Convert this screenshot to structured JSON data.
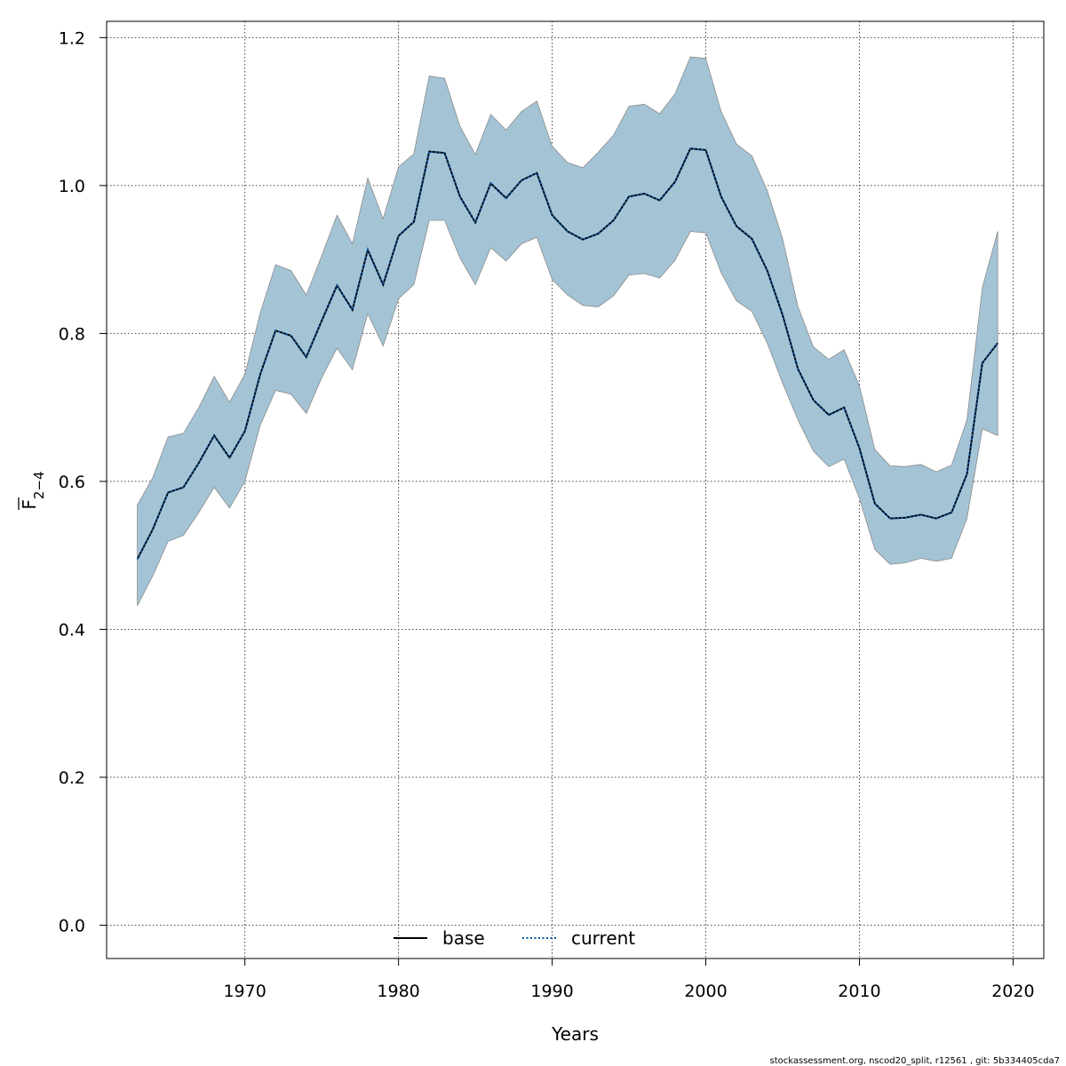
{
  "chart_data": {
    "type": "area",
    "xlabel": "Years",
    "ylabel_main": "F",
    "ylabel_sub": "2−4",
    "xlim": [
      1961,
      2022
    ],
    "ylim": [
      -0.045,
      1.222
    ],
    "x_ticks": [
      1970,
      1980,
      1990,
      2000,
      2010,
      2020
    ],
    "y_ticks": [
      0.0,
      0.2,
      0.4,
      0.6,
      0.8,
      1.0,
      1.2
    ],
    "grid": true,
    "legend_position": "bottom-center",
    "colors": {
      "band": "#a4c4d6",
      "band_edge": "#8a8a8a",
      "current": "#0b5aa8",
      "base": "#000000"
    },
    "years": [
      1963,
      1964,
      1965,
      1966,
      1967,
      1968,
      1969,
      1970,
      1971,
      1972,
      1973,
      1974,
      1975,
      1976,
      1977,
      1978,
      1979,
      1980,
      1981,
      1982,
      1983,
      1984,
      1985,
      1986,
      1987,
      1988,
      1989,
      1990,
      1991,
      1992,
      1993,
      1994,
      1995,
      1996,
      1997,
      1998,
      1999,
      2000,
      2001,
      2002,
      2003,
      2004,
      2005,
      2006,
      2007,
      2008,
      2009,
      2010,
      2011,
      2012,
      2013,
      2014,
      2015,
      2016,
      2017,
      2018,
      2019
    ],
    "series": [
      {
        "name": "base",
        "style": "solid",
        "values": [
          0.495,
          0.535,
          0.585,
          0.592,
          0.625,
          0.662,
          0.632,
          0.668,
          0.745,
          0.804,
          0.797,
          0.768,
          0.817,
          0.865,
          0.832,
          0.913,
          0.866,
          0.932,
          0.951,
          1.046,
          1.044,
          0.985,
          0.95,
          1.003,
          0.983,
          1.007,
          1.017,
          0.96,
          0.938,
          0.927,
          0.935,
          0.953,
          0.985,
          0.989,
          0.98,
          1.005,
          1.05,
          1.048,
          0.985,
          0.945,
          0.928,
          0.885,
          0.825,
          0.752,
          0.71,
          0.69,
          0.7,
          0.645,
          0.57,
          0.55,
          0.551,
          0.555,
          0.55,
          0.558,
          0.61,
          0.76,
          0.787
        ]
      },
      {
        "name": "current",
        "style": "dotted",
        "values": [
          0.495,
          0.535,
          0.585,
          0.592,
          0.625,
          0.662,
          0.632,
          0.668,
          0.745,
          0.804,
          0.797,
          0.768,
          0.817,
          0.865,
          0.832,
          0.913,
          0.866,
          0.932,
          0.951,
          1.046,
          1.044,
          0.985,
          0.95,
          1.003,
          0.983,
          1.007,
          1.017,
          0.96,
          0.938,
          0.927,
          0.935,
          0.953,
          0.985,
          0.989,
          0.98,
          1.005,
          1.05,
          1.048,
          0.985,
          0.945,
          0.928,
          0.885,
          0.825,
          0.752,
          0.71,
          0.69,
          0.7,
          0.645,
          0.57,
          0.55,
          0.551,
          0.555,
          0.55,
          0.558,
          0.61,
          0.76,
          0.787
        ]
      }
    ],
    "band_upper": [
      0.568,
      0.605,
      0.66,
      0.665,
      0.7,
      0.742,
      0.707,
      0.745,
      0.828,
      0.893,
      0.885,
      0.852,
      0.905,
      0.96,
      0.921,
      1.01,
      0.955,
      1.025,
      1.043,
      1.148,
      1.145,
      1.08,
      1.042,
      1.096,
      1.075,
      1.1,
      1.114,
      1.053,
      1.031,
      1.024,
      1.045,
      1.068,
      1.107,
      1.11,
      1.097,
      1.124,
      1.174,
      1.172,
      1.1,
      1.056,
      1.04,
      0.993,
      0.928,
      0.836,
      0.782,
      0.765,
      0.778,
      0.729,
      0.643,
      0.621,
      0.62,
      0.623,
      0.613,
      0.622,
      0.683,
      0.862,
      0.938
    ],
    "band_lower": [
      0.432,
      0.472,
      0.519,
      0.527,
      0.558,
      0.592,
      0.564,
      0.6,
      0.676,
      0.723,
      0.718,
      0.692,
      0.74,
      0.78,
      0.751,
      0.827,
      0.783,
      0.847,
      0.866,
      0.953,
      0.953,
      0.902,
      0.866,
      0.916,
      0.898,
      0.921,
      0.93,
      0.873,
      0.852,
      0.838,
      0.836,
      0.851,
      0.879,
      0.881,
      0.875,
      0.899,
      0.938,
      0.936,
      0.882,
      0.844,
      0.83,
      0.787,
      0.733,
      0.683,
      0.641,
      0.62,
      0.63,
      0.577,
      0.508,
      0.488,
      0.49,
      0.496,
      0.492,
      0.496,
      0.55,
      0.671,
      0.662
    ]
  },
  "footer": "stockassessment.org, nscod20_split, r12561 , git: 5b334405cda7"
}
